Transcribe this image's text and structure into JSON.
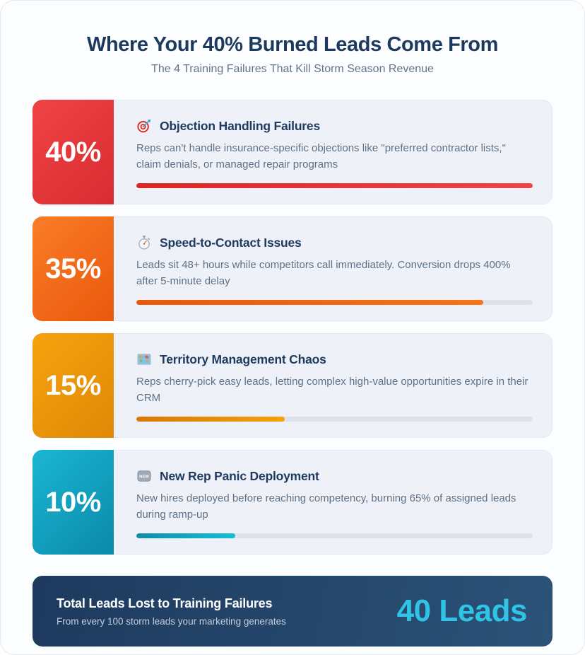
{
  "header": {
    "title": "Where Your 40% Burned Leads Come From",
    "subtitle": "The 4 Training Failures That Kill Storm Season Revenue"
  },
  "cards": [
    {
      "pct_label": "40%",
      "icon": "target-icon",
      "title": "Objection Handling Failures",
      "description": "Reps can't handle insurance-specific objections like \"preferred contractor lists,\" claim denials, or managed repair programs",
      "bar_width": "100%",
      "accent": {
        "from": "#ef4444",
        "to": "#d92b31"
      },
      "bar": {
        "from": "#dc2626",
        "to": "#ef4444"
      }
    },
    {
      "pct_label": "35%",
      "icon": "stopwatch-icon",
      "title": "Speed-to-Contact Issues",
      "description": "Leads sit 48+ hours while competitors call immediately. Conversion drops 400% after 5-minute delay",
      "bar_width": "87.5%",
      "accent": {
        "from": "#f97c28",
        "to": "#ea580c"
      },
      "bar": {
        "from": "#ea580c",
        "to": "#f97316"
      }
    },
    {
      "pct_label": "15%",
      "icon": "world-map-icon",
      "title": "Territory Management Chaos",
      "description": "Reps cherry-pick easy leads, letting complex high-value opportunities expire in their CRM",
      "bar_width": "37.5%",
      "accent": {
        "from": "#f5a30e",
        "to": "#e08806"
      },
      "bar": {
        "from": "#d97706",
        "to": "#f5a00b"
      }
    },
    {
      "pct_label": "10%",
      "icon": "new-badge-icon",
      "title": "New Rep Panic Deployment",
      "description": "New hires deployed before reaching competency, burning 65% of assigned leads during ramp-up",
      "bar_width": "25%",
      "accent": {
        "from": "#19b6d3",
        "to": "#0b8aa9"
      },
      "bar": {
        "from": "#0e8da8",
        "to": "#19bcd6"
      }
    }
  ],
  "summary": {
    "title": "Total Leads Lost to Training Failures",
    "subtitle": "From every 100 storm leads your marketing generates",
    "value": "40 Leads",
    "value_color": "#2fc3e6",
    "bg": {
      "from": "#1d3a5e",
      "to": "#2c5277"
    }
  },
  "chart_data": {
    "type": "bar",
    "title": "Where Your 40% Burned Leads Come From",
    "subtitle": "The 4 Training Failures That Kill Storm Season Revenue",
    "categories": [
      "Objection Handling Failures",
      "Speed-to-Contact Issues",
      "Territory Management Chaos",
      "New Rep Panic Deployment"
    ],
    "values": [
      40,
      35,
      15,
      10
    ],
    "unit": "percent of burned leads",
    "bar_scale_max": 40,
    "legend": null,
    "grid": false,
    "total": {
      "label": "Total Leads Lost to Training Failures",
      "basis": "From every 100 storm leads your marketing generates",
      "value": "40 Leads"
    }
  }
}
